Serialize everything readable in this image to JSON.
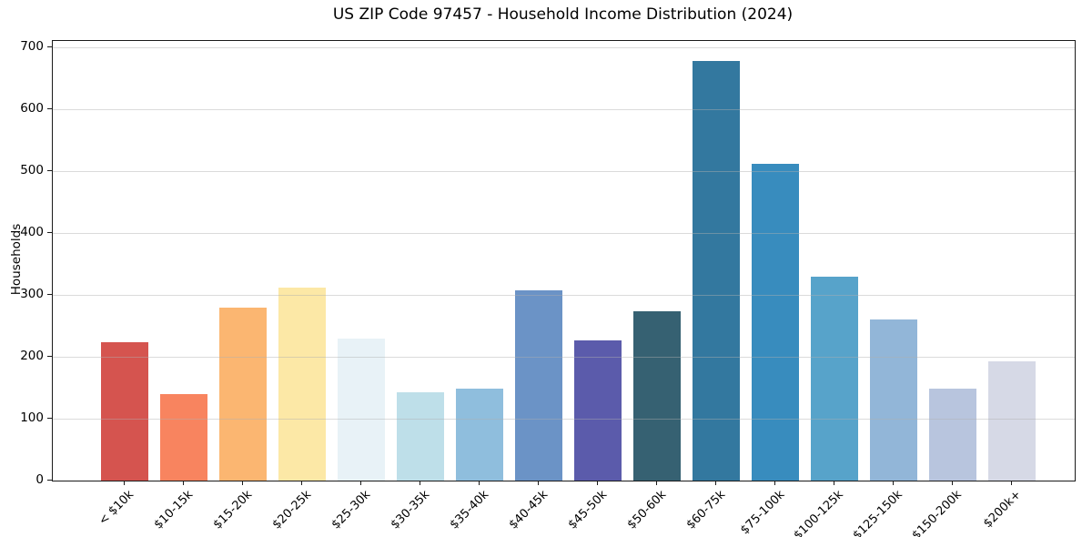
{
  "figure": {
    "background": "#ffffff",
    "axis_color": "#1a1a1a",
    "grid_color": "#b0b0b0"
  },
  "chart_data": {
    "type": "bar",
    "title": "US ZIP Code 97457 - Household Income Distribution (2024)",
    "xlabel": "",
    "ylabel": "Households",
    "categories": [
      "< $10k",
      "$10-15k",
      "$15-20k",
      "$20-25k",
      "$25-30k",
      "$30-35k",
      "$35-40k",
      "$40-45k",
      "$45-50k",
      "$50-60k",
      "$60-75k",
      "$75-100k",
      "$100-125k",
      "$125-150k",
      "$150-200k",
      "$200k+"
    ],
    "values": [
      223,
      139,
      279,
      311,
      230,
      143,
      149,
      307,
      227,
      273,
      677,
      512,
      330,
      260,
      148,
      192
    ],
    "bar_colors": [
      "#d5544f",
      "#f8845f",
      "#fbb671",
      "#fce8a6",
      "#e8f2f7",
      "#bedfe9",
      "#8fbedd",
      "#6b93c6",
      "#5b5bab",
      "#366172",
      "#33789f",
      "#388cbe",
      "#57a3ca",
      "#92b6d8",
      "#b8c5de",
      "#d6d9e6"
    ],
    "ylim": [
      0,
      710
    ],
    "yticks": [
      0,
      100,
      200,
      300,
      400,
      500,
      600,
      700
    ],
    "grid": "horizontal",
    "legend": "none",
    "x_tick_rotation": 45
  }
}
